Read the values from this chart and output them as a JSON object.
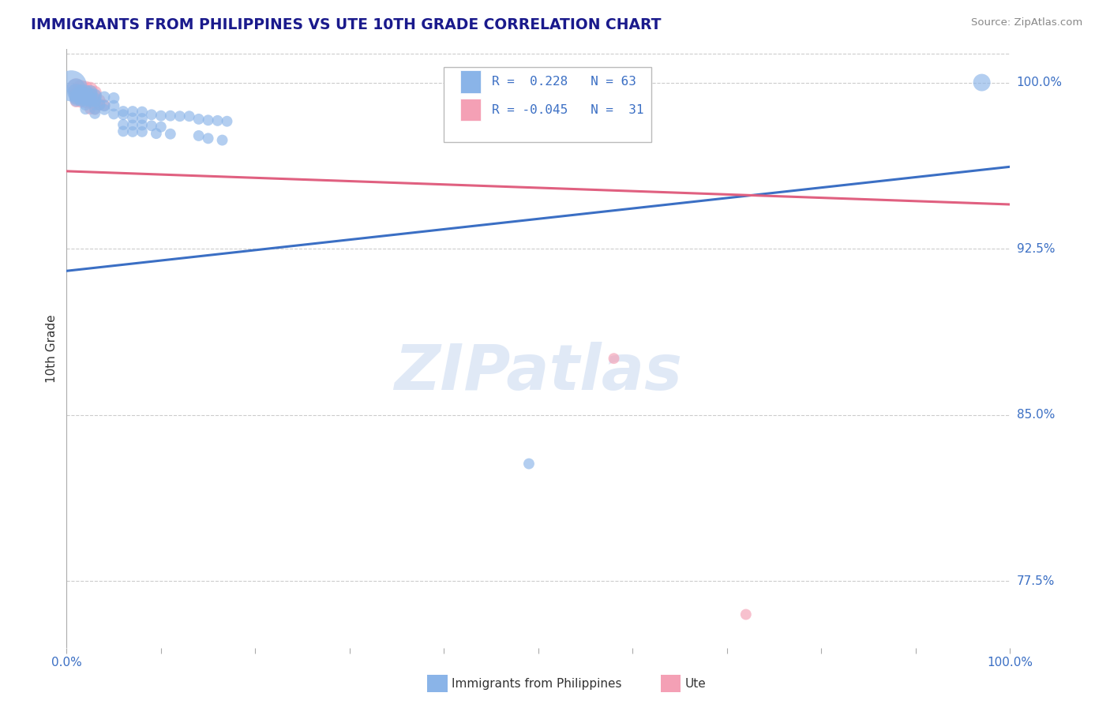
{
  "title": "IMMIGRANTS FROM PHILIPPINES VS UTE 10TH GRADE CORRELATION CHART",
  "source": "Source: ZipAtlas.com",
  "ylabel": "10th Grade",
  "y_tick_values": [
    0.775,
    0.85,
    0.925,
    1.0
  ],
  "y_tick_labels": [
    "77.5%",
    "85.0%",
    "92.5%",
    "100.0%"
  ],
  "xlim": [
    0.0,
    1.0
  ],
  "ylim": [
    0.745,
    1.015
  ],
  "x_tick_positions": [
    0.0,
    0.1,
    0.2,
    0.3,
    0.4,
    0.5,
    0.6,
    0.7,
    0.8,
    0.9,
    1.0
  ],
  "blue_color": "#8AB4E8",
  "pink_color": "#F4A0B5",
  "blue_line_color": "#3B6FC4",
  "pink_line_color": "#E06080",
  "title_color": "#1A1A8C",
  "label_color": "#3B6FC4",
  "legend_R_blue": "0.228",
  "legend_N_blue": "63",
  "legend_R_pink": "-0.045",
  "legend_N_pink": "31",
  "watermark_text": "ZIPatlas",
  "blue_trend_x": [
    0.0,
    1.0
  ],
  "blue_trend_y": [
    0.915,
    0.962
  ],
  "pink_trend_x": [
    0.0,
    1.0
  ],
  "pink_trend_y": [
    0.96,
    0.945
  ],
  "blue_scatter": [
    [
      0.005,
      0.9985
    ],
    [
      0.01,
      0.9975
    ],
    [
      0.01,
      0.9955
    ],
    [
      0.015,
      0.9955
    ],
    [
      0.02,
      0.9955
    ],
    [
      0.025,
      0.9955
    ],
    [
      0.015,
      0.9945
    ],
    [
      0.02,
      0.9945
    ],
    [
      0.025,
      0.9945
    ],
    [
      0.01,
      0.994
    ],
    [
      0.03,
      0.994
    ],
    [
      0.01,
      0.993
    ],
    [
      0.015,
      0.993
    ],
    [
      0.02,
      0.993
    ],
    [
      0.025,
      0.9925
    ],
    [
      0.03,
      0.9925
    ],
    [
      0.01,
      0.992
    ],
    [
      0.015,
      0.992
    ],
    [
      0.02,
      0.992
    ],
    [
      0.025,
      0.9915
    ],
    [
      0.03,
      0.9915
    ],
    [
      0.04,
      0.9935
    ],
    [
      0.05,
      0.993
    ],
    [
      0.02,
      0.99
    ],
    [
      0.03,
      0.99
    ],
    [
      0.035,
      0.99
    ],
    [
      0.04,
      0.9895
    ],
    [
      0.05,
      0.9895
    ],
    [
      0.02,
      0.988
    ],
    [
      0.03,
      0.988
    ],
    [
      0.04,
      0.9878
    ],
    [
      0.06,
      0.987
    ],
    [
      0.07,
      0.987
    ],
    [
      0.08,
      0.9868
    ],
    [
      0.03,
      0.986
    ],
    [
      0.05,
      0.9858
    ],
    [
      0.06,
      0.9855
    ],
    [
      0.09,
      0.9855
    ],
    [
      0.1,
      0.985
    ],
    [
      0.11,
      0.985
    ],
    [
      0.12,
      0.9848
    ],
    [
      0.13,
      0.9848
    ],
    [
      0.07,
      0.984
    ],
    [
      0.08,
      0.9838
    ],
    [
      0.14,
      0.9835
    ],
    [
      0.15,
      0.983
    ],
    [
      0.16,
      0.9828
    ],
    [
      0.17,
      0.9825
    ],
    [
      0.06,
      0.981
    ],
    [
      0.07,
      0.9808
    ],
    [
      0.08,
      0.9808
    ],
    [
      0.09,
      0.9805
    ],
    [
      0.1,
      0.98
    ],
    [
      0.06,
      0.978
    ],
    [
      0.07,
      0.9778
    ],
    [
      0.08,
      0.9778
    ],
    [
      0.095,
      0.977
    ],
    [
      0.11,
      0.9768
    ],
    [
      0.14,
      0.976
    ],
    [
      0.15,
      0.9748
    ],
    [
      0.165,
      0.974
    ],
    [
      0.97,
      1.0
    ],
    [
      0.49,
      0.828
    ]
  ],
  "blue_sizes": [
    800,
    300,
    250,
    200,
    200,
    180,
    200,
    180,
    170,
    160,
    160,
    150,
    150,
    150,
    140,
    140,
    130,
    130,
    130,
    120,
    120,
    110,
    110,
    110,
    110,
    110,
    110,
    110,
    100,
    100,
    100,
    100,
    100,
    100,
    100,
    100,
    100,
    100,
    100,
    100,
    100,
    100,
    100,
    100,
    100,
    100,
    100,
    100,
    100,
    100,
    100,
    100,
    100,
    100,
    100,
    100,
    100,
    100,
    100,
    100,
    100,
    250,
    100
  ],
  "pink_scatter": [
    [
      0.01,
      0.998
    ],
    [
      0.015,
      0.9975
    ],
    [
      0.02,
      0.9972
    ],
    [
      0.025,
      0.997
    ],
    [
      0.01,
      0.996
    ],
    [
      0.015,
      0.9958
    ],
    [
      0.02,
      0.9958
    ],
    [
      0.025,
      0.9955
    ],
    [
      0.03,
      0.9955
    ],
    [
      0.01,
      0.9948
    ],
    [
      0.015,
      0.9945
    ],
    [
      0.02,
      0.9942
    ],
    [
      0.025,
      0.994
    ],
    [
      0.03,
      0.994
    ],
    [
      0.01,
      0.9932
    ],
    [
      0.015,
      0.993
    ],
    [
      0.02,
      0.9928
    ],
    [
      0.025,
      0.9925
    ],
    [
      0.03,
      0.9922
    ],
    [
      0.035,
      0.992
    ],
    [
      0.01,
      0.9915
    ],
    [
      0.015,
      0.9912
    ],
    [
      0.02,
      0.991
    ],
    [
      0.025,
      0.9908
    ],
    [
      0.03,
      0.9905
    ],
    [
      0.035,
      0.99
    ],
    [
      0.04,
      0.9898
    ],
    [
      0.025,
      0.988
    ],
    [
      0.03,
      0.9878
    ],
    [
      0.58,
      0.8755
    ],
    [
      0.72,
      0.76
    ]
  ],
  "pink_sizes": [
    250,
    220,
    200,
    180,
    200,
    180,
    170,
    160,
    150,
    160,
    150,
    140,
    130,
    130,
    150,
    140,
    130,
    120,
    120,
    110,
    120,
    110,
    110,
    110,
    110,
    110,
    110,
    100,
    100,
    100,
    100
  ]
}
